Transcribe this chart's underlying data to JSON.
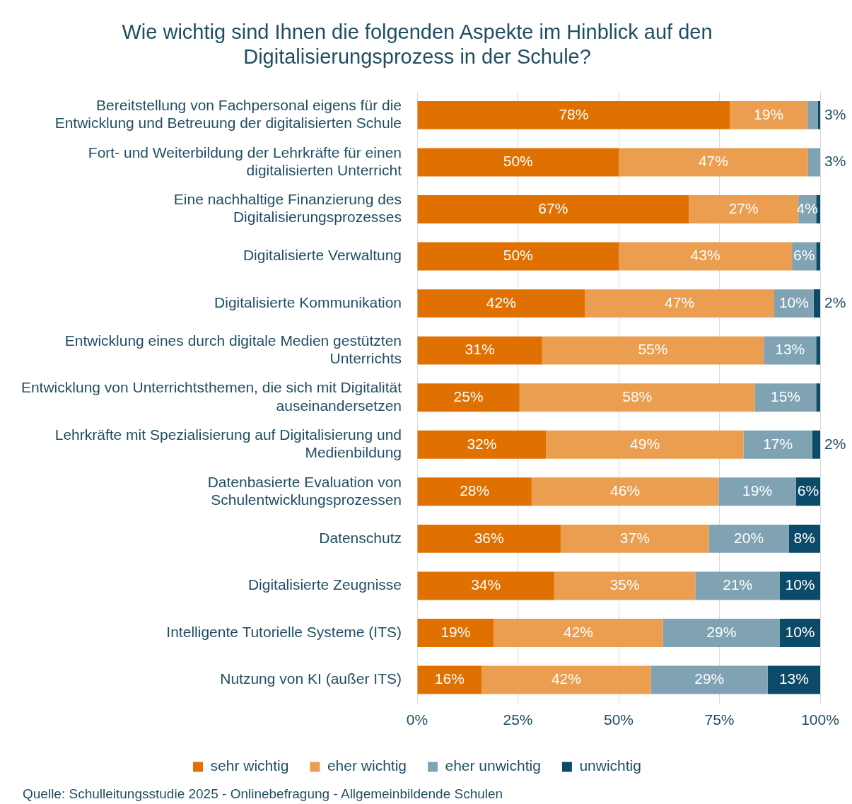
{
  "chart_data": {
    "type": "bar",
    "orientation": "horizontal",
    "stacked": true,
    "title": "Wie wichtig sind Ihnen die folgenden Aspekte im Hinblick auf den Digitalisierungsprozess in der Schule?",
    "categories": [
      "Bereitstellung von Fachpersonal eigens für die Entwicklung und Betreuung der digitalisierten Schule",
      "Fort- und Weiterbildung der Lehrkräfte für einen digitalisierten Unterricht",
      "Eine nachhaltige Finanzierung des Digitalisierungsprozesses",
      "Digitalisierte Verwaltung",
      "Digitalisierte Kommunikation",
      "Entwicklung eines durch digitale Medien gestützten Unterrichts",
      "Entwicklung von Unterrichtsthemen, die sich mit Digitalität auseinandersetzen",
      "Lehrkräfte mit Spezialisierung auf Digitalisierung und Medienbildung",
      "Datenbasierte Evaluation von Schulentwicklungsprozessen",
      "Datenschutz",
      "Digitalisierte Zeugnisse",
      "Intelligente Tutorielle Systeme (ITS)",
      "Nutzung von KI (außer ITS)"
    ],
    "series": [
      {
        "name": "sehr wichtig",
        "color": "#e07000",
        "values": [
          77.6,
          50,
          67.4,
          50,
          41.6,
          31,
          25.4,
          32,
          28.4,
          35.6,
          34,
          19,
          16
        ],
        "value_labels": [
          "78%",
          "50%",
          "67%",
          "50%",
          "42%",
          "31%",
          "25%",
          "32%",
          "28%",
          "36%",
          "34%",
          "19%",
          "16%"
        ]
      },
      {
        "name": "eher wichtig",
        "color": "#eb9d50",
        "values": [
          19.2,
          47,
          27.2,
          43,
          47,
          55,
          58.4,
          49,
          46.4,
          36.8,
          35,
          42,
          42
        ],
        "value_labels": [
          "19%",
          "47%",
          "27%",
          "43%",
          "47%",
          "55%",
          "58%",
          "49%",
          "46%",
          "37%",
          "35%",
          "42%",
          "42%"
        ]
      },
      {
        "name": "eher unwichtig",
        "color": "#7fa3b3",
        "values": [
          2.6,
          3,
          4.4,
          6,
          9.8,
          13,
          15.2,
          17,
          19.2,
          19.8,
          21,
          29,
          29
        ],
        "value_labels": [
          "3%",
          "3%",
          "4%",
          "6%",
          "10%",
          "13%",
          "15%",
          "17%",
          "19%",
          "20%",
          "21%",
          "29%",
          "29%"
        ]
      },
      {
        "name": "unwichtig",
        "color": "#0b4a68",
        "values": [
          0.6,
          null,
          1,
          1,
          1.6,
          1,
          1,
          2,
          6,
          7.8,
          10,
          10,
          13
        ],
        "value_labels": [
          null,
          null,
          null,
          null,
          "2%",
          null,
          null,
          "2%",
          "6%",
          "8%",
          "10%",
          "10%",
          "13%"
        ]
      }
    ],
    "xlim": [
      0,
      100
    ],
    "xticks": [
      {
        "value": 0,
        "label": "0%"
      },
      {
        "value": 25,
        "label": "25%"
      },
      {
        "value": 50,
        "label": "50%"
      },
      {
        "value": 75,
        "label": "75%"
      },
      {
        "value": 100,
        "label": "100%"
      }
    ],
    "grid": "x",
    "legend": "bottom",
    "annotations": [
      "Quelle: Schulleitungsstudie 2025 - Onlinebefragung - Allgemeinbildende Schulen"
    ]
  }
}
